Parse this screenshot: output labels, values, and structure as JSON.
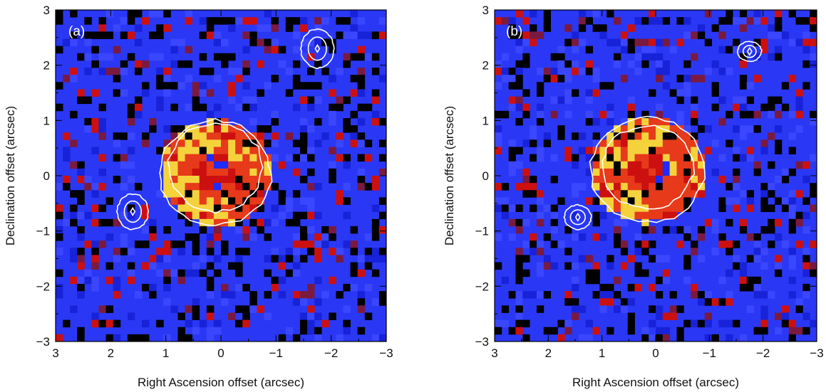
{
  "figure": {
    "panels": [
      {
        "id": "a",
        "label": "(a)",
        "xlabel": "Right Ascension offset (arcsec)",
        "ylabel": "Declination offset (arcsec)",
        "xticks": [
          "3",
          "2",
          "1",
          "0",
          "−1",
          "−2",
          "−3"
        ],
        "yticks": [
          "3",
          "2",
          "1",
          "0",
          "−1",
          "−2",
          "−3"
        ]
      },
      {
        "id": "b",
        "label": "(b)",
        "xlabel": "Right Ascension offset (arcsec)",
        "ylabel": "Declination offset (arcsec)",
        "xticks": [
          "3",
          "2",
          "1",
          "0",
          "−1",
          "−2",
          "−3"
        ],
        "yticks": [
          "3",
          "2",
          "1",
          "0",
          "−1",
          "−2",
          "−3"
        ]
      }
    ]
  },
  "chart_data": [
    {
      "type": "heatmap",
      "panel": "a",
      "xlabel": "Right Ascension offset (arcsec)",
      "ylabel": "Declination offset (arcsec)",
      "xlim": [
        3,
        -3
      ],
      "ylim": [
        -3,
        3
      ],
      "colormap": [
        "#000000",
        "#1f2bff",
        "#3a46ff",
        "#cc1010",
        "#e63a1a",
        "#f5d23c"
      ],
      "background_color": "#2a38f5",
      "contours": [
        {
          "center": [
            0.1,
            0.05
          ],
          "rx": 1.0,
          "ry": 0.95
        },
        {
          "center": [
            0.1,
            0.15
          ],
          "rx": 0.85,
          "ry": 0.8
        },
        {
          "center": [
            1.6,
            -0.65
          ],
          "rx": 0.28,
          "ry": 0.32
        },
        {
          "center": [
            -1.75,
            2.3
          ],
          "rx": 0.3,
          "ry": 0.35
        }
      ]
    },
    {
      "type": "heatmap",
      "panel": "b",
      "xlabel": "Right Ascension offset (arcsec)",
      "ylabel": "Declination offset (arcsec)",
      "xlim": [
        3,
        -3
      ],
      "ylim": [
        -3,
        3
      ],
      "colormap": [
        "#000000",
        "#1f2bff",
        "#3a46ff",
        "#cc1010",
        "#e63a1a",
        "#f5d23c"
      ],
      "background_color": "#2a38f5",
      "contours": [
        {
          "center": [
            0.15,
            0.1
          ],
          "rx": 1.05,
          "ry": 0.95
        },
        {
          "center": [
            0.15,
            0.15
          ],
          "rx": 0.85,
          "ry": 0.75
        },
        {
          "center": [
            1.45,
            -0.75
          ],
          "rx": 0.25,
          "ry": 0.22
        },
        {
          "center": [
            -1.75,
            2.25
          ],
          "rx": 0.22,
          "ry": 0.18
        }
      ]
    }
  ]
}
